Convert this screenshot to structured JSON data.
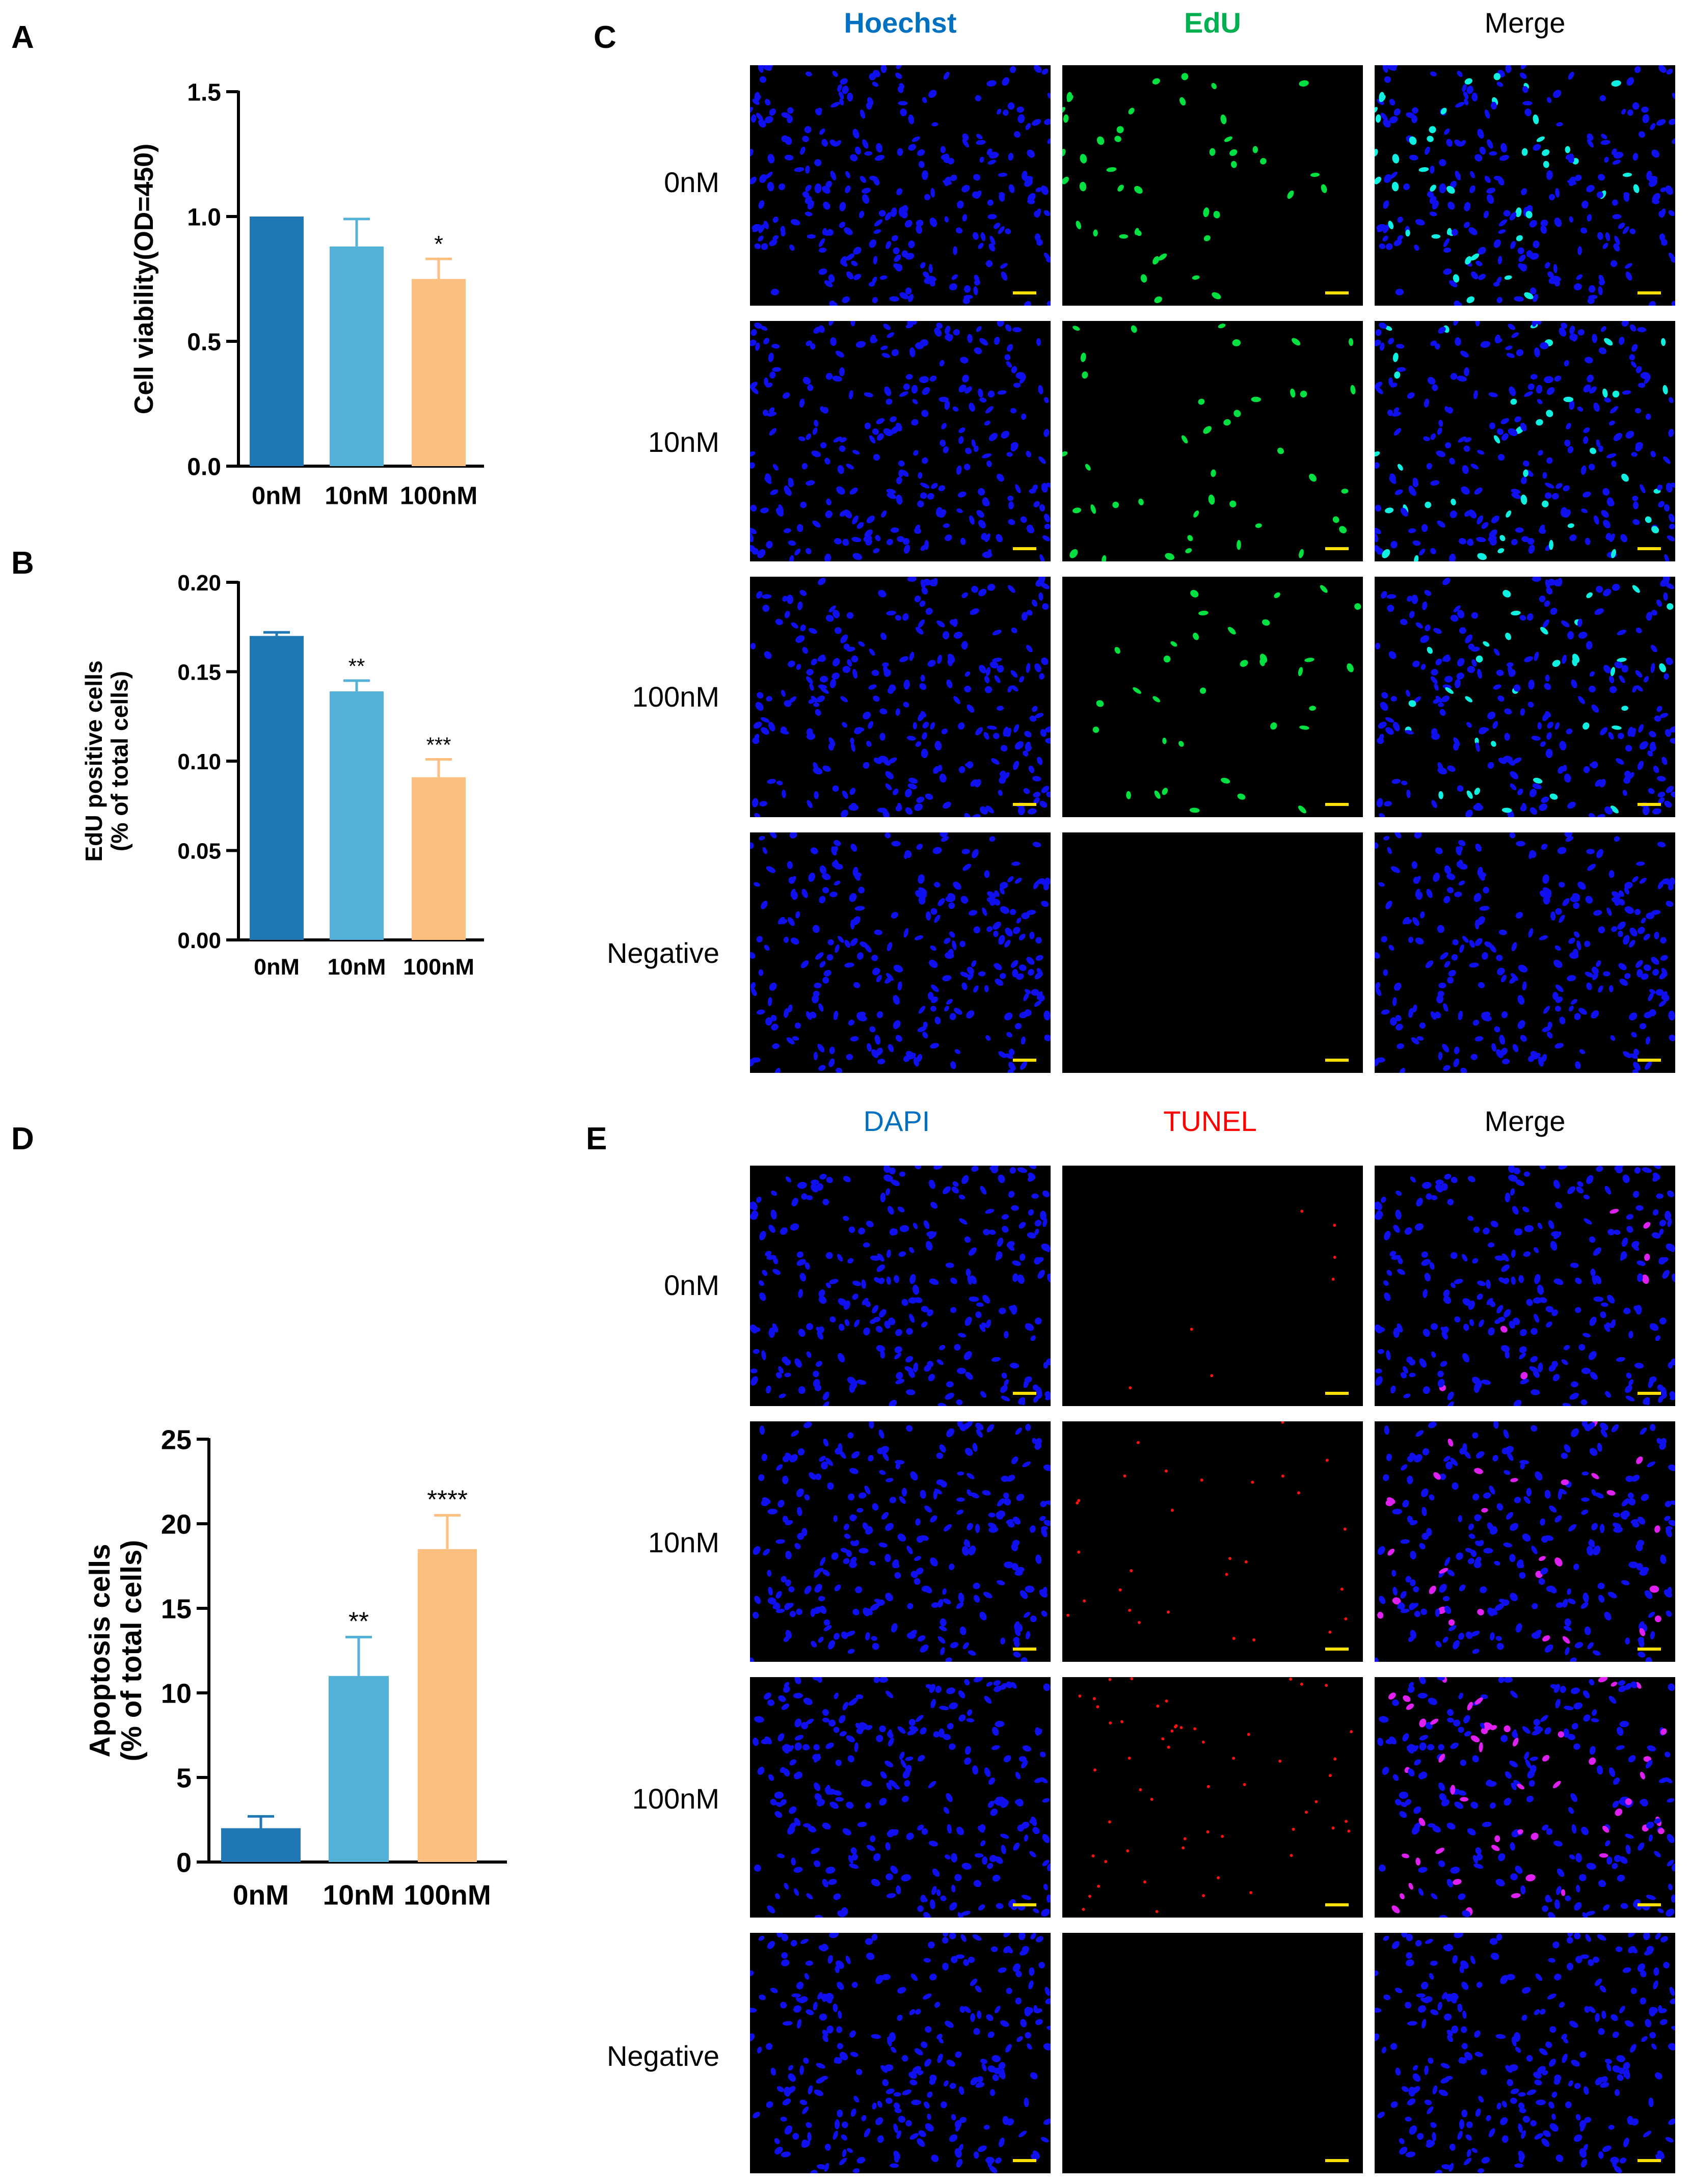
{
  "panel_labels": {
    "a": "A",
    "b": "B",
    "c": "C",
    "d": "D",
    "e": "E"
  },
  "colors": {
    "c0": "#1f77b4",
    "c10": "#53b0d6",
    "c100": "#fdbf80",
    "hoechst": "#0070c0",
    "edu": "#00b050",
    "dapi": "#0070c0",
    "tunel": "#ff0000",
    "merge": "#000000",
    "nuclei": "#1010ee",
    "scalebar": "#ffe000"
  },
  "chart_data": [
    {
      "id": "A",
      "type": "bar",
      "categories": [
        "0nM",
        "10nM",
        "100nM"
      ],
      "values": [
        1.0,
        0.88,
        0.75
      ],
      "errors": [
        0.0,
        0.11,
        0.08
      ],
      "significance": [
        "",
        "",
        "*"
      ],
      "ylabel": "Cell viability(OD=450)",
      "ylim": [
        0,
        1.5
      ],
      "yticks": [
        "0.0",
        "0.5",
        "1.0",
        "1.5"
      ]
    },
    {
      "id": "B",
      "type": "bar",
      "categories": [
        "0nM",
        "10nM",
        "100nM"
      ],
      "values": [
        0.17,
        0.139,
        0.091
      ],
      "errors": [
        0.002,
        0.006,
        0.01
      ],
      "significance": [
        "",
        "**",
        "***"
      ],
      "ylabel": "EdU positive cells",
      "ylabel2": "(% of total cells)",
      "ylim": [
        0,
        0.2
      ],
      "yticks": [
        "0.00",
        "0.05",
        "0.10",
        "0.15",
        "0.20"
      ]
    },
    {
      "id": "D",
      "type": "bar",
      "categories": [
        "0nM",
        "10nM",
        "100nM"
      ],
      "values": [
        2.0,
        11.0,
        18.5
      ],
      "errors": [
        0.7,
        2.3,
        2.0
      ],
      "significance": [
        "",
        "**",
        "****"
      ],
      "ylabel": "Apoptosis cells",
      "ylabel2": "(% of total cells)",
      "ylim": [
        0,
        25
      ],
      "yticks": [
        "0",
        "5",
        "10",
        "15",
        "20",
        "25"
      ]
    }
  ],
  "panel_c": {
    "columns": [
      "Hoechst",
      "EdU",
      "Merge"
    ],
    "rows": [
      "0nM",
      "10nM",
      "100nM",
      "Negative"
    ],
    "edu_positive_fraction": [
      0.17,
      0.139,
      0.091,
      0
    ]
  },
  "panel_e": {
    "columns": [
      "DAPI",
      "TUNEL",
      "Merge"
    ],
    "rows": [
      "0nM",
      "10nM",
      "100nM",
      "Negative"
    ],
    "apoptosis_percent": [
      2.0,
      11.0,
      18.5,
      0
    ]
  }
}
